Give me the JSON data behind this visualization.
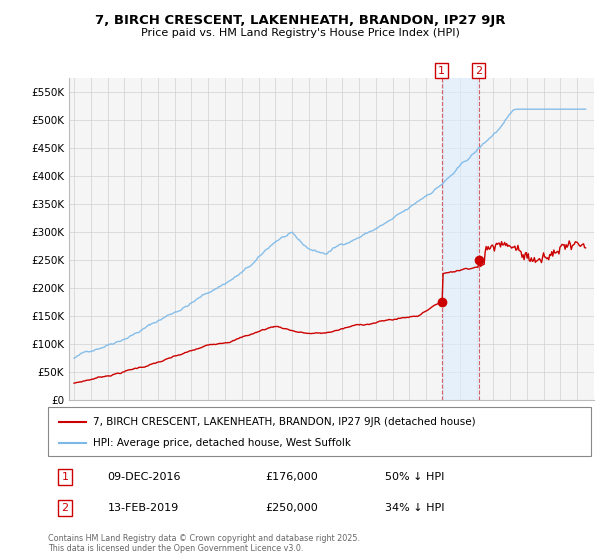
{
  "title": "7, BIRCH CRESCENT, LAKENHEATH, BRANDON, IP27 9JR",
  "subtitle": "Price paid vs. HM Land Registry's House Price Index (HPI)",
  "ylabel_ticks": [
    "£0",
    "£50K",
    "£100K",
    "£150K",
    "£200K",
    "£250K",
    "£300K",
    "£350K",
    "£400K",
    "£450K",
    "£500K",
    "£550K"
  ],
  "ytick_values": [
    0,
    50000,
    100000,
    150000,
    200000,
    250000,
    300000,
    350000,
    400000,
    450000,
    500000,
    550000
  ],
  "ylim": [
    0,
    575000
  ],
  "legend_line1": "7, BIRCH CRESCENT, LAKENHEATH, BRANDON, IP27 9JR (detached house)",
  "legend_line2": "HPI: Average price, detached house, West Suffolk",
  "sale1_date": "09-DEC-2016",
  "sale1_price": "£176,000",
  "sale1_note": "50% ↓ HPI",
  "sale2_date": "13-FEB-2019",
  "sale2_price": "£250,000",
  "sale2_note": "34% ↓ HPI",
  "footer": "Contains HM Land Registry data © Crown copyright and database right 2025.\nThis data is licensed under the Open Government Licence v3.0.",
  "hpi_color": "#7ab8e8",
  "price_color": "#cc0000",
  "background_color": "#ffffff",
  "chart_bg": "#f5f5f5",
  "sale1_x": 2016.92,
  "sale2_x": 2019.12
}
